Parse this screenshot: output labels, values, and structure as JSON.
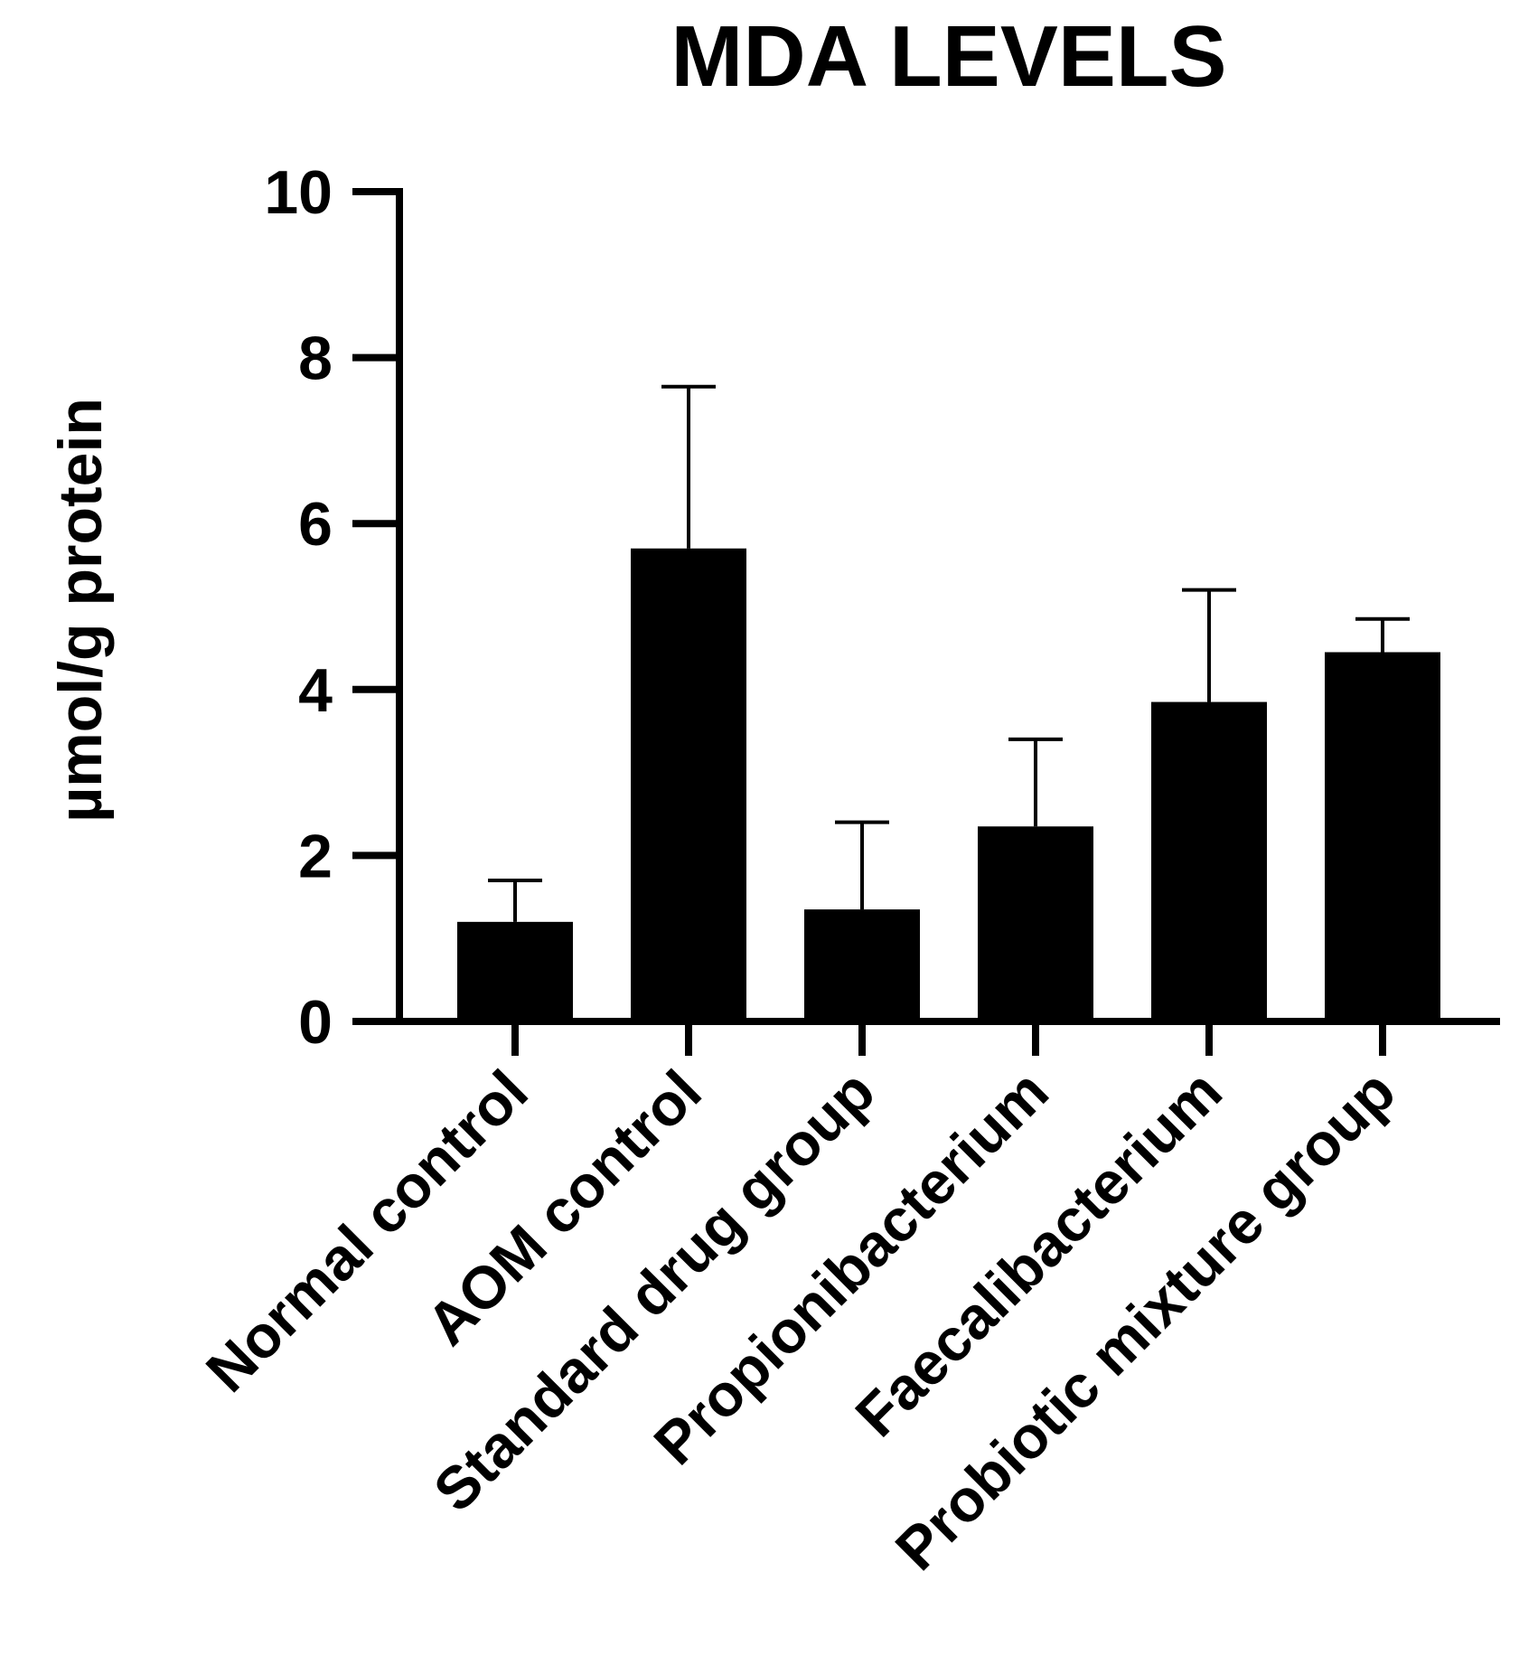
{
  "chart_data": {
    "type": "bar",
    "title": "MDA LEVELS",
    "xlabel": "",
    "ylabel": "µmol/g protein",
    "ylim": [
      0,
      10
    ],
    "yticks": [
      0,
      2,
      4,
      6,
      8,
      10
    ],
    "categories": [
      "Normal control",
      "AOM control",
      "Standard drug group",
      "Propionibacterium",
      "Faecalibacterium",
      "Probiotic mixture group"
    ],
    "values": [
      1.2,
      5.7,
      1.35,
      2.35,
      3.85,
      4.45
    ],
    "error_upper": [
      0.5,
      1.95,
      1.05,
      1.05,
      1.35,
      0.4
    ],
    "colors": {
      "bar": "#000000",
      "axis": "#000000",
      "error_bar": "#000000"
    },
    "grid": false,
    "legend": "none"
  }
}
